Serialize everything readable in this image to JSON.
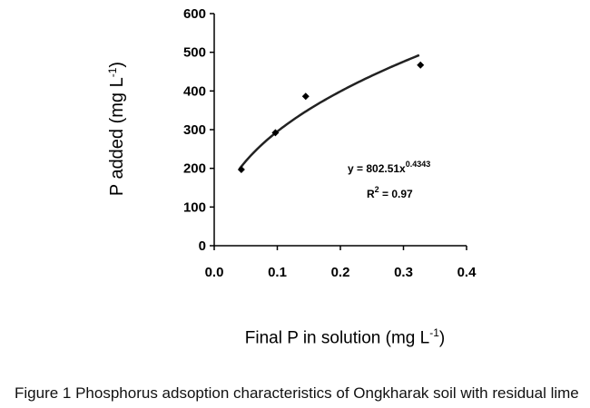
{
  "chart_data": {
    "type": "scatter",
    "title": "",
    "xlabel": "Final P in solution (mg L",
    "xlabel_sup": "-1",
    "xlabel_end": ")",
    "ylabel": "P added (mg L",
    "ylabel_sup": "-1",
    "ylabel_end": ")",
    "xlim": [
      0,
      0.4
    ],
    "ylim": [
      0,
      600
    ],
    "xticks": [
      "0.0",
      "0.1",
      "0.2",
      "0.3",
      "0.4"
    ],
    "yticks": [
      "0",
      "100",
      "200",
      "300",
      "400",
      "500",
      "600"
    ],
    "grid": false,
    "series": [
      {
        "x": [
          0.043,
          0.097,
          0.145,
          0.327
        ],
        "y": [
          197,
          292,
          386,
          467
        ]
      }
    ],
    "fit": {
      "type": "power",
      "a": 802.51,
      "b": 0.4343,
      "x_range": [
        0.04,
        0.325
      ],
      "equation_main": "y = 802.51x",
      "equation_exp": "0.4343",
      "r2_main": "R",
      "r2_sup": "2",
      "r2_end": " = 0.97"
    }
  },
  "caption": {
    "figure": "Figure 1",
    "text": " Phosphorus adsoption characteristics of Ongkharak soil with residual lime"
  }
}
